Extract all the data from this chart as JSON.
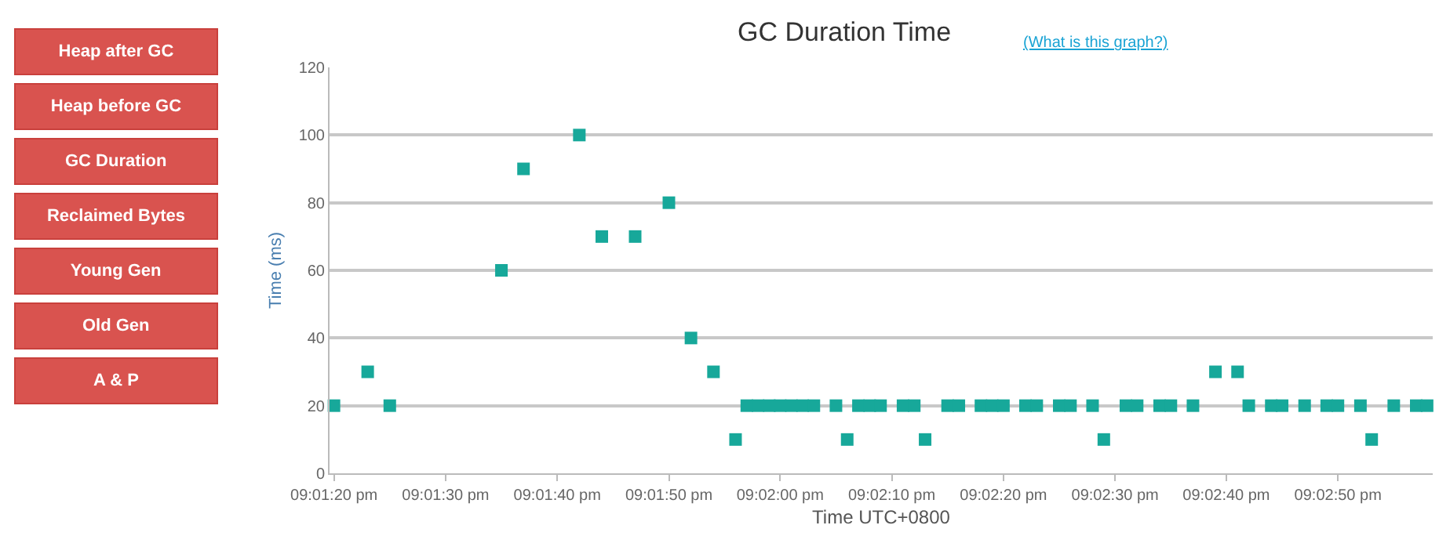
{
  "chart_data": {
    "type": "scatter",
    "title": "GC Duration Time",
    "xlabel": "Time UTC+0800",
    "ylabel": "Time (ms)",
    "annotations": [
      "(What is this graph?)",
      "Heap after GC",
      "Heap before GC",
      "GC Duration",
      "Reclaimed Bytes",
      "Young Gen",
      "Old Gen",
      "A & P"
    ],
    "x": [
      21.02222,
      21.02306,
      21.02361,
      21.02639,
      21.02694,
      21.02833,
      21.02889,
      21.02972,
      21.03056,
      21.03111,
      21.03167,
      21.03222,
      21.0325,
      21.03278,
      21.03306,
      21.03333,
      21.03361,
      21.03389,
      21.03417,
      21.03472,
      21.035,
      21.03528,
      21.03556,
      21.03583,
      21.03639,
      21.03667,
      21.03694,
      21.0375,
      21.03778,
      21.03833,
      21.03861,
      21.03889,
      21.03944,
      21.03972,
      21.04028,
      21.04056,
      21.04111,
      21.04139,
      21.04194,
      21.04222,
      21.04278,
      21.04306,
      21.04361,
      21.04417,
      21.04472,
      21.045,
      21.04556,
      21.04583,
      21.04639,
      21.04694,
      21.04722,
      21.04778,
      21.04806,
      21.04861,
      21.04917,
      21.04944
    ],
    "series": [
      {
        "color": "#17a89a",
        "values": [
          20,
          30,
          20,
          60,
          90,
          100,
          70,
          70,
          80,
          40,
          30,
          10,
          20,
          20,
          20,
          20,
          20,
          20,
          20,
          20,
          10,
          20,
          20,
          20,
          20,
          20,
          10,
          20,
          20,
          20,
          20,
          20,
          20,
          20,
          20,
          20,
          20,
          10,
          20,
          20,
          20,
          20,
          20,
          30,
          30,
          20,
          20,
          20,
          20,
          20,
          20,
          20,
          10,
          20,
          20,
          20
        ]
      }
    ],
    "xlim": [
      21.02211,
      21.04958
    ],
    "xticks": [
      {
        "value": 21.02222,
        "label": "09:01:20 pm"
      },
      {
        "value": 21.025,
        "label": "09:01:30 pm"
      },
      {
        "value": 21.02778,
        "label": "09:01:40 pm"
      },
      {
        "value": 21.03056,
        "label": "09:01:50 pm"
      },
      {
        "value": 21.03333,
        "label": "09:02:00 pm"
      },
      {
        "value": 21.03611,
        "label": "09:02:10 pm"
      },
      {
        "value": 21.03889,
        "label": "09:02:20 pm"
      },
      {
        "value": 21.04167,
        "label": "09:02:30 pm"
      },
      {
        "value": 21.04444,
        "label": "09:02:40 pm"
      },
      {
        "value": 21.04722,
        "label": "09:02:50 pm"
      }
    ],
    "ylim": [
      0,
      120
    ],
    "yticks": [
      0,
      20,
      40,
      60,
      80,
      100,
      120
    ],
    "grid": "y",
    "marker": "square"
  }
}
